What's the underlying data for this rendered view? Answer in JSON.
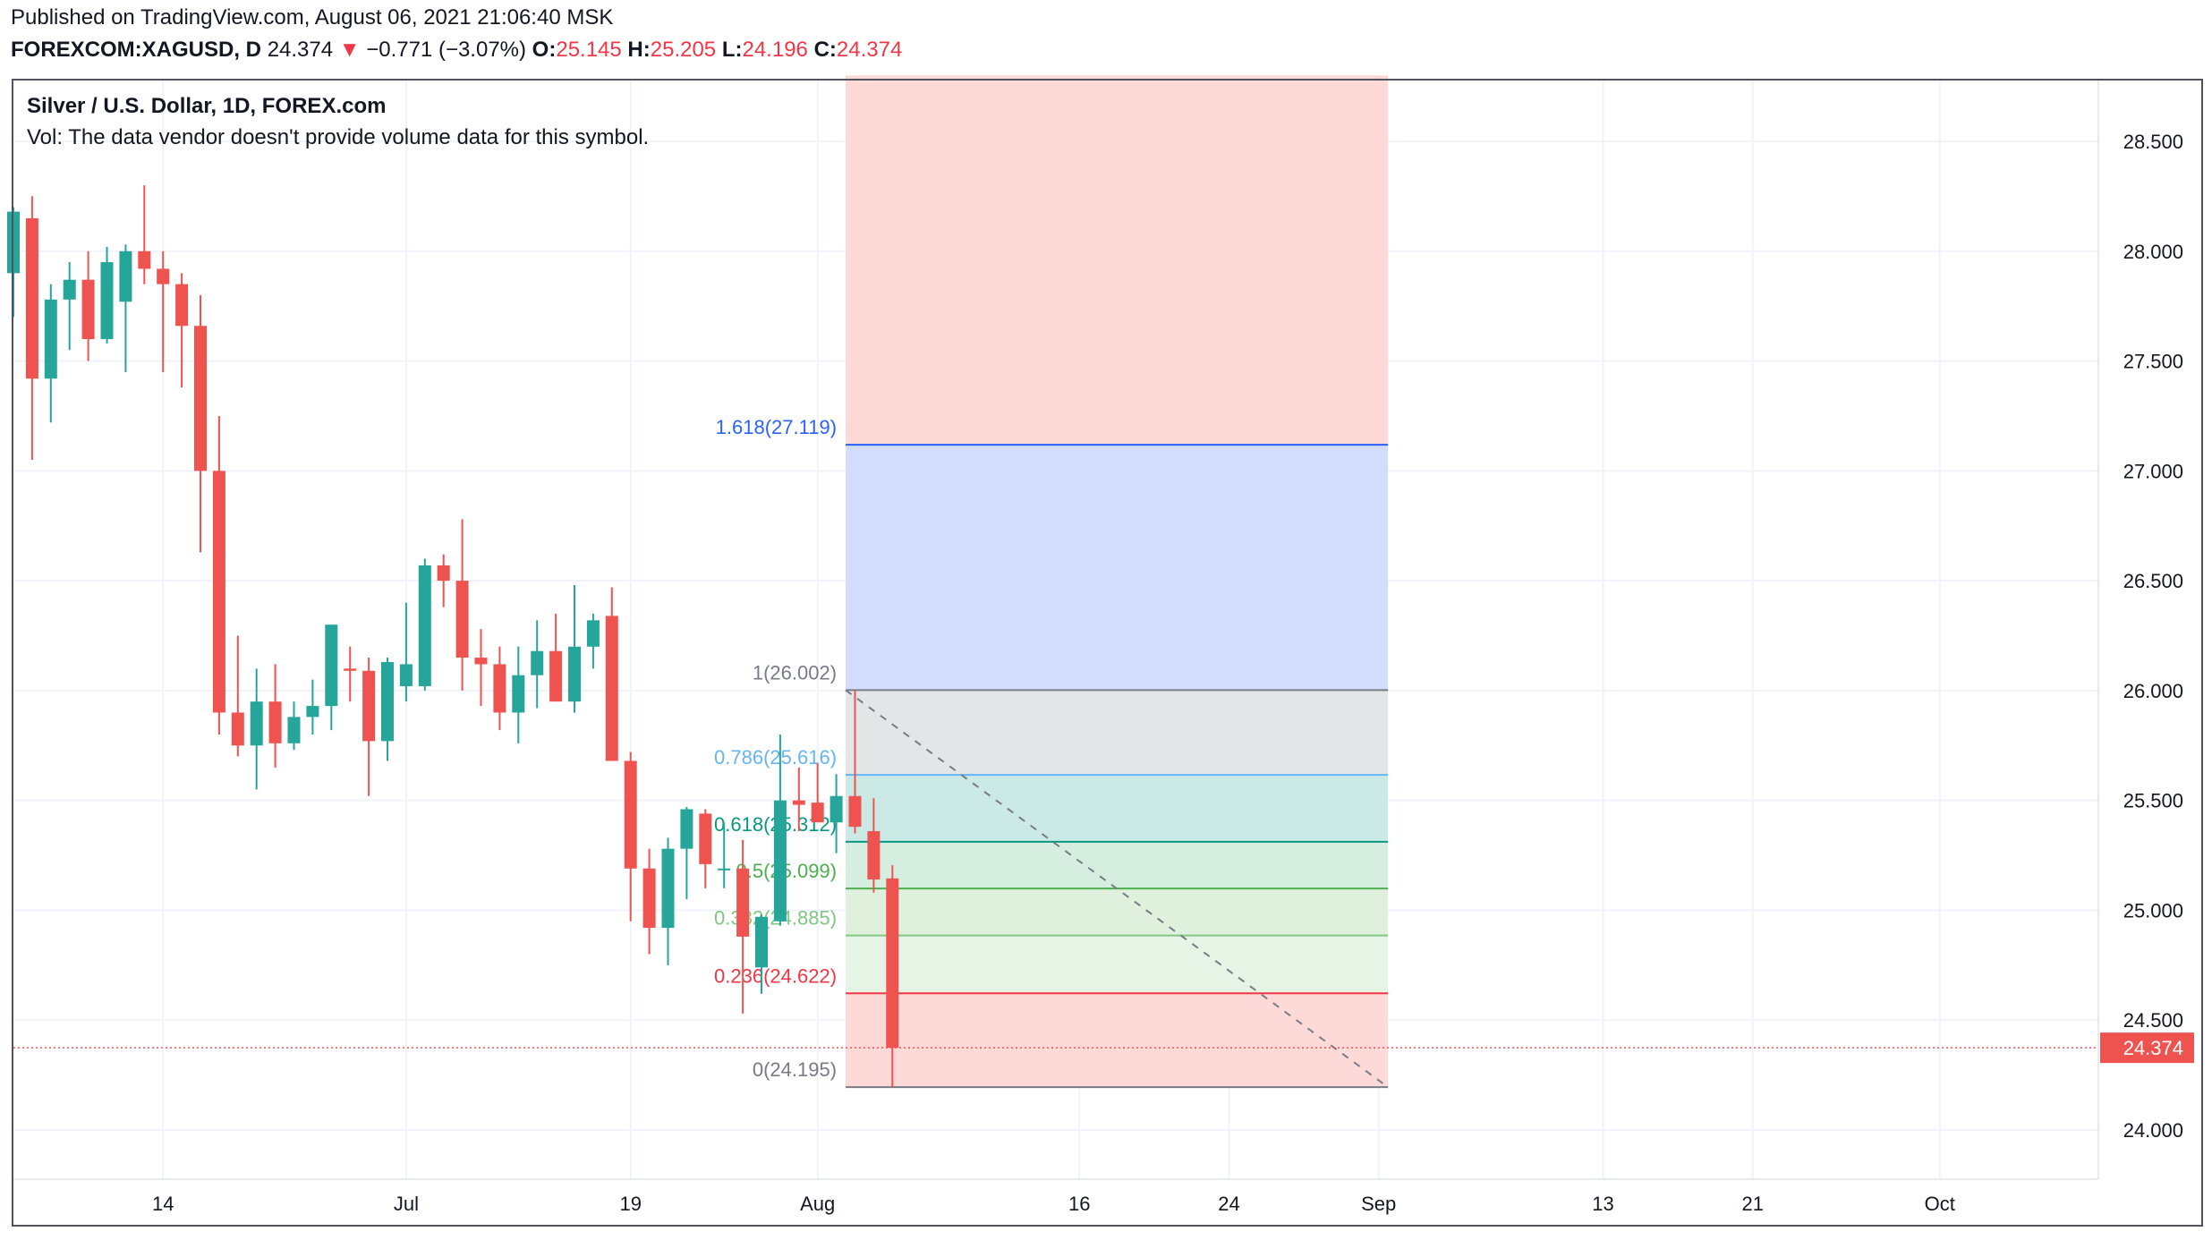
{
  "header": {
    "published": "Published on TradingView.com, August 06, 2021 21:06:40 MSK",
    "symbol": "FOREXCOM:XAGUSD, D",
    "last": "24.374",
    "change": "−0.771 (−3.07%)",
    "o_label": "O:",
    "o_value": "25.145",
    "h_label": "H:",
    "h_value": "25.205",
    "l_label": "L:",
    "l_value": "24.196",
    "c_label": "C:",
    "c_value": "24.374"
  },
  "legend": {
    "title": "Silver / U.S. Dollar, 1D, FOREX.com",
    "vol": "Vol: The data vendor doesn't provide volume data for this symbol."
  },
  "colors": {
    "up": "#26a69a",
    "down": "#ef5350",
    "grid": "#f0f3fa",
    "axis_text": "#131722",
    "price_label_bg": "#ef5350"
  },
  "chart_data": {
    "type": "candlestick",
    "symbol": "XAGUSD",
    "timeframe": "1D",
    "ylim": [
      23.8,
      28.8
    ],
    "y_ticks": [
      "24.000",
      "24.500",
      "25.000",
      "25.500",
      "26.000",
      "26.500",
      "27.000",
      "27.500",
      "28.000",
      "28.500"
    ],
    "x_ticks": [
      {
        "label": "14",
        "idx": 8
      },
      {
        "label": "Jul",
        "idx": 21
      },
      {
        "label": "19",
        "idx": 33
      },
      {
        "label": "Aug",
        "idx": 43
      },
      {
        "label": "16",
        "idx": 57
      },
      {
        "label": "24",
        "idx": 65
      },
      {
        "label": "Sep",
        "idx": 73
      },
      {
        "label": "13",
        "idx": 85
      },
      {
        "label": "21",
        "idx": 93
      },
      {
        "label": "Oct",
        "idx": 103
      }
    ],
    "candles": [
      {
        "o": 27.9,
        "h": 28.2,
        "l": 27.7,
        "c": 28.18
      },
      {
        "o": 28.15,
        "h": 28.25,
        "l": 27.05,
        "c": 27.42
      },
      {
        "o": 27.42,
        "h": 27.85,
        "l": 27.22,
        "c": 27.78
      },
      {
        "o": 27.78,
        "h": 27.95,
        "l": 27.55,
        "c": 27.87
      },
      {
        "o": 27.87,
        "h": 28.0,
        "l": 27.5,
        "c": 27.6
      },
      {
        "o": 27.6,
        "h": 28.02,
        "l": 27.58,
        "c": 27.95
      },
      {
        "o": 27.77,
        "h": 28.03,
        "l": 27.45,
        "c": 28.0
      },
      {
        "o": 28.0,
        "h": 28.3,
        "l": 27.85,
        "c": 27.92
      },
      {
        "o": 27.92,
        "h": 28.0,
        "l": 27.45,
        "c": 27.85
      },
      {
        "o": 27.85,
        "h": 27.9,
        "l": 27.38,
        "c": 27.66
      },
      {
        "o": 27.66,
        "h": 27.8,
        "l": 26.63,
        "c": 27.0
      },
      {
        "o": 27.0,
        "h": 27.25,
        "l": 25.8,
        "c": 25.9
      },
      {
        "o": 25.9,
        "h": 26.25,
        "l": 25.7,
        "c": 25.75
      },
      {
        "o": 25.75,
        "h": 26.1,
        "l": 25.55,
        "c": 25.95
      },
      {
        "o": 25.95,
        "h": 26.12,
        "l": 25.65,
        "c": 25.76
      },
      {
        "o": 25.76,
        "h": 25.95,
        "l": 25.73,
        "c": 25.88
      },
      {
        "o": 25.88,
        "h": 26.05,
        "l": 25.8,
        "c": 25.93
      },
      {
        "o": 25.93,
        "h": 26.3,
        "l": 25.82,
        "c": 26.3
      },
      {
        "o": 26.1,
        "h": 26.2,
        "l": 25.95,
        "c": 26.09
      },
      {
        "o": 26.09,
        "h": 26.15,
        "l": 25.52,
        "c": 25.77
      },
      {
        "o": 25.77,
        "h": 26.15,
        "l": 25.68,
        "c": 26.13
      },
      {
        "o": 26.02,
        "h": 26.4,
        "l": 25.95,
        "c": 26.12
      },
      {
        "o": 26.02,
        "h": 26.6,
        "l": 26.0,
        "c": 26.57
      },
      {
        "o": 26.57,
        "h": 26.62,
        "l": 26.38,
        "c": 26.5
      },
      {
        "o": 26.5,
        "h": 26.78,
        "l": 26.0,
        "c": 26.15
      },
      {
        "o": 26.15,
        "h": 26.28,
        "l": 25.93,
        "c": 26.12
      },
      {
        "o": 26.12,
        "h": 26.2,
        "l": 25.82,
        "c": 25.9
      },
      {
        "o": 25.9,
        "h": 26.2,
        "l": 25.76,
        "c": 26.07
      },
      {
        "o": 26.07,
        "h": 26.32,
        "l": 25.92,
        "c": 26.18
      },
      {
        "o": 26.18,
        "h": 26.35,
        "l": 25.95,
        "c": 25.95
      },
      {
        "o": 25.95,
        "h": 26.48,
        "l": 25.9,
        "c": 26.2
      },
      {
        "o": 26.2,
        "h": 26.35,
        "l": 26.1,
        "c": 26.32
      },
      {
        "o": 26.34,
        "h": 26.47,
        "l": 25.68,
        "c": 25.68
      },
      {
        "o": 25.68,
        "h": 25.72,
        "l": 24.95,
        "c": 25.19
      },
      {
        "o": 25.19,
        "h": 25.28,
        "l": 24.8,
        "c": 24.92
      },
      {
        "o": 24.92,
        "h": 25.33,
        "l": 24.75,
        "c": 25.28
      },
      {
        "o": 25.28,
        "h": 25.47,
        "l": 25.05,
        "c": 25.46
      },
      {
        "o": 25.44,
        "h": 25.46,
        "l": 25.1,
        "c": 25.21
      },
      {
        "o": 25.19,
        "h": 25.4,
        "l": 25.1,
        "c": 25.19
      },
      {
        "o": 25.19,
        "h": 25.32,
        "l": 24.53,
        "c": 24.88
      },
      {
        "o": 24.74,
        "h": 24.98,
        "l": 24.62,
        "c": 24.97
      },
      {
        "o": 24.95,
        "h": 25.8,
        "l": 24.93,
        "c": 25.5
      },
      {
        "o": 25.5,
        "h": 25.65,
        "l": 25.36,
        "c": 25.48
      },
      {
        "o": 25.49,
        "h": 25.67,
        "l": 25.43,
        "c": 25.4
      },
      {
        "o": 25.4,
        "h": 25.62,
        "l": 25.26,
        "c": 25.52
      },
      {
        "o": 25.52,
        "h": 26.0,
        "l": 25.35,
        "c": 25.38
      },
      {
        "o": 25.36,
        "h": 25.51,
        "l": 25.08,
        "c": 25.14
      },
      {
        "o": 25.145,
        "h": 25.205,
        "l": 24.196,
        "c": 24.374
      }
    ],
    "fib_retracement": {
      "levels": [
        {
          "ratio": "0",
          "price": 24.195,
          "label": "0(24.195)",
          "color": "#787b86"
        },
        {
          "ratio": "0.236",
          "price": 24.622,
          "label": "0.236(24.622)",
          "color": "#f23645"
        },
        {
          "ratio": "0.382",
          "price": 24.885,
          "label": "0.382(24.885)",
          "color": "#81c784"
        },
        {
          "ratio": "0.5",
          "price": 25.099,
          "label": "0.5(25.099)",
          "color": "#4caf50"
        },
        {
          "ratio": "0.618",
          "price": 25.312,
          "label": "0.618(25.312)",
          "color": "#089981"
        },
        {
          "ratio": "0.786",
          "price": 25.616,
          "label": "0.786(25.616)",
          "color": "#64b5f6"
        },
        {
          "ratio": "1",
          "price": 26.002,
          "label": "1(26.002)",
          "color": "#787b86"
        },
        {
          "ratio": "1.618",
          "price": 27.119,
          "label": "1.618(27.119)",
          "color": "#2962ff"
        }
      ],
      "zones": [
        {
          "from": 24.195,
          "to": 24.622,
          "color": "#fdd9d8"
        },
        {
          "from": 24.622,
          "to": 24.885,
          "color": "#e6f4e5"
        },
        {
          "from": 24.885,
          "to": 25.099,
          "color": "#dff0dd"
        },
        {
          "from": 25.099,
          "to": 25.312,
          "color": "#d6eee0"
        },
        {
          "from": 25.312,
          "to": 25.616,
          "color": "#cbeae6"
        },
        {
          "from": 25.616,
          "to": 26.002,
          "color": "#ddedfb"
        },
        {
          "from": 26.002,
          "to": 26.0021,
          "color": "#e4e5e7"
        },
        {
          "from": 26.002,
          "to": 27.119,
          "color": "#d2ddfd"
        },
        {
          "from": 27.119,
          "to": 28.8,
          "color": "#fdd9d8"
        }
      ],
      "gray_zone": {
        "from": 25.616,
        "to": 26.002
      },
      "start_idx": 44.5,
      "end_idx": 73.5,
      "trend_from": {
        "idx": 44.5,
        "price": 26.002
      },
      "trend_to": {
        "idx": 73.5,
        "price": 24.195
      }
    },
    "current_price": {
      "value": 24.374,
      "label": "24.374"
    }
  }
}
